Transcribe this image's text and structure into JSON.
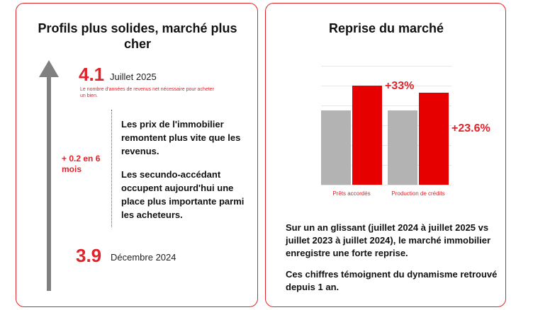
{
  "left_card": {
    "title": "Profils plus solides, marché plus cher",
    "top_value": "4.1",
    "top_date": "Juillet 2025",
    "footnote": "Le nombre d'années de revenus net nécessaire pour acheter un bien.",
    "delta": "+ 0.2 en 6 mois",
    "paragraph_1": "Les prix de l'immobilier remontent plus vite que les revenus.",
    "paragraph_2": "Les secundo-accédant occupent aujourd'hui une place plus importante parmi les acheteurs.",
    "bottom_value": "3.9",
    "bottom_date": "Décembre 2024"
  },
  "right_card": {
    "title": "Reprise du marché",
    "paragraph_1": "Sur un an glissant (juillet 2024 à juillet 2025 vs juillet 2023 à juillet 2024), le marché immobilier enregistre une forte reprise.",
    "paragraph_2": "Ces chiffres témoignent du dynamisme retrouvé depuis 1 an."
  },
  "colors": {
    "accent": "#e0232b",
    "bar_red": "#e60000",
    "bar_grey": "#b3b3b3",
    "arrow": "#808080"
  },
  "chart_data": {
    "type": "bar",
    "categories": [
      "Prêts accordés",
      "Production de crédits"
    ],
    "series": [
      {
        "name": "juillet 2023 à juillet 2024",
        "values": [
          100,
          100
        ]
      },
      {
        "name": "juillet 2024 à juillet 2025",
        "values": [
          133,
          123.6
        ]
      }
    ],
    "data_labels": [
      "+33%",
      "+23.6%"
    ],
    "title": "Reprise du marché",
    "xlabel": "",
    "ylabel": "",
    "ylim": [
      0,
      160
    ],
    "grid": true
  }
}
